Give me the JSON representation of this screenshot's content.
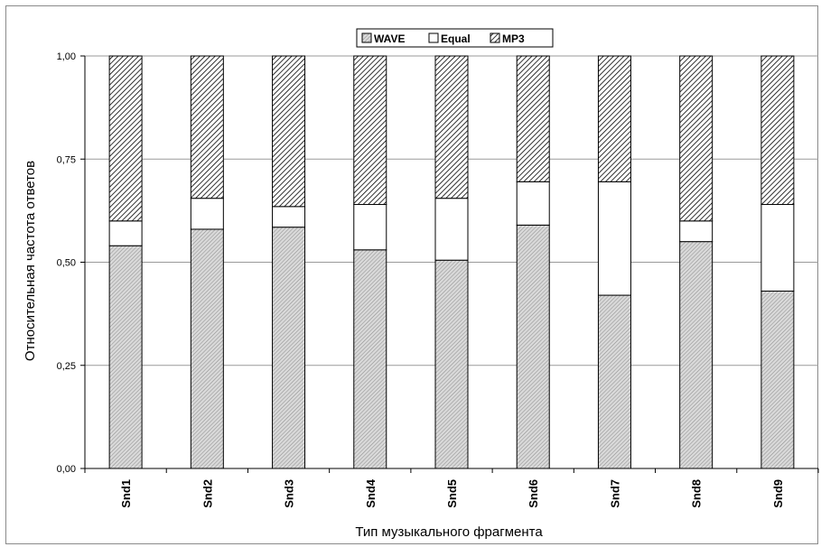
{
  "chart_data": {
    "type": "bar",
    "stacked": true,
    "categories": [
      "Snd1",
      "Snd2",
      "Snd3",
      "Snd4",
      "Snd5",
      "Snd6",
      "Snd7",
      "Snd8",
      "Snd9"
    ],
    "series": [
      {
        "name": "WAVE",
        "values": [
          0.54,
          0.58,
          0.585,
          0.53,
          0.505,
          0.59,
          0.42,
          0.55,
          0.43
        ]
      },
      {
        "name": "Equal",
        "values": [
          0.06,
          0.075,
          0.05,
          0.11,
          0.15,
          0.105,
          0.275,
          0.05,
          0.21
        ]
      },
      {
        "name": "MP3",
        "values": [
          0.4,
          0.345,
          0.365,
          0.36,
          0.345,
          0.305,
          0.305,
          0.4,
          0.36
        ]
      }
    ],
    "y_ticks": [
      "0,00",
      "0,25",
      "0,50",
      "0,75",
      "1,00"
    ],
    "ylim": [
      0,
      1
    ],
    "ylabel": "Относительная частота ответов",
    "xlabel": "Тип музыкального фрагмента",
    "legend_position": "top-center",
    "grid": true,
    "colors": {
      "WAVE": "#c8c8c8",
      "Equal": "#ffffff",
      "MP3": "#ffffff",
      "grid": "#9a9a9a",
      "border": "#000000"
    }
  }
}
